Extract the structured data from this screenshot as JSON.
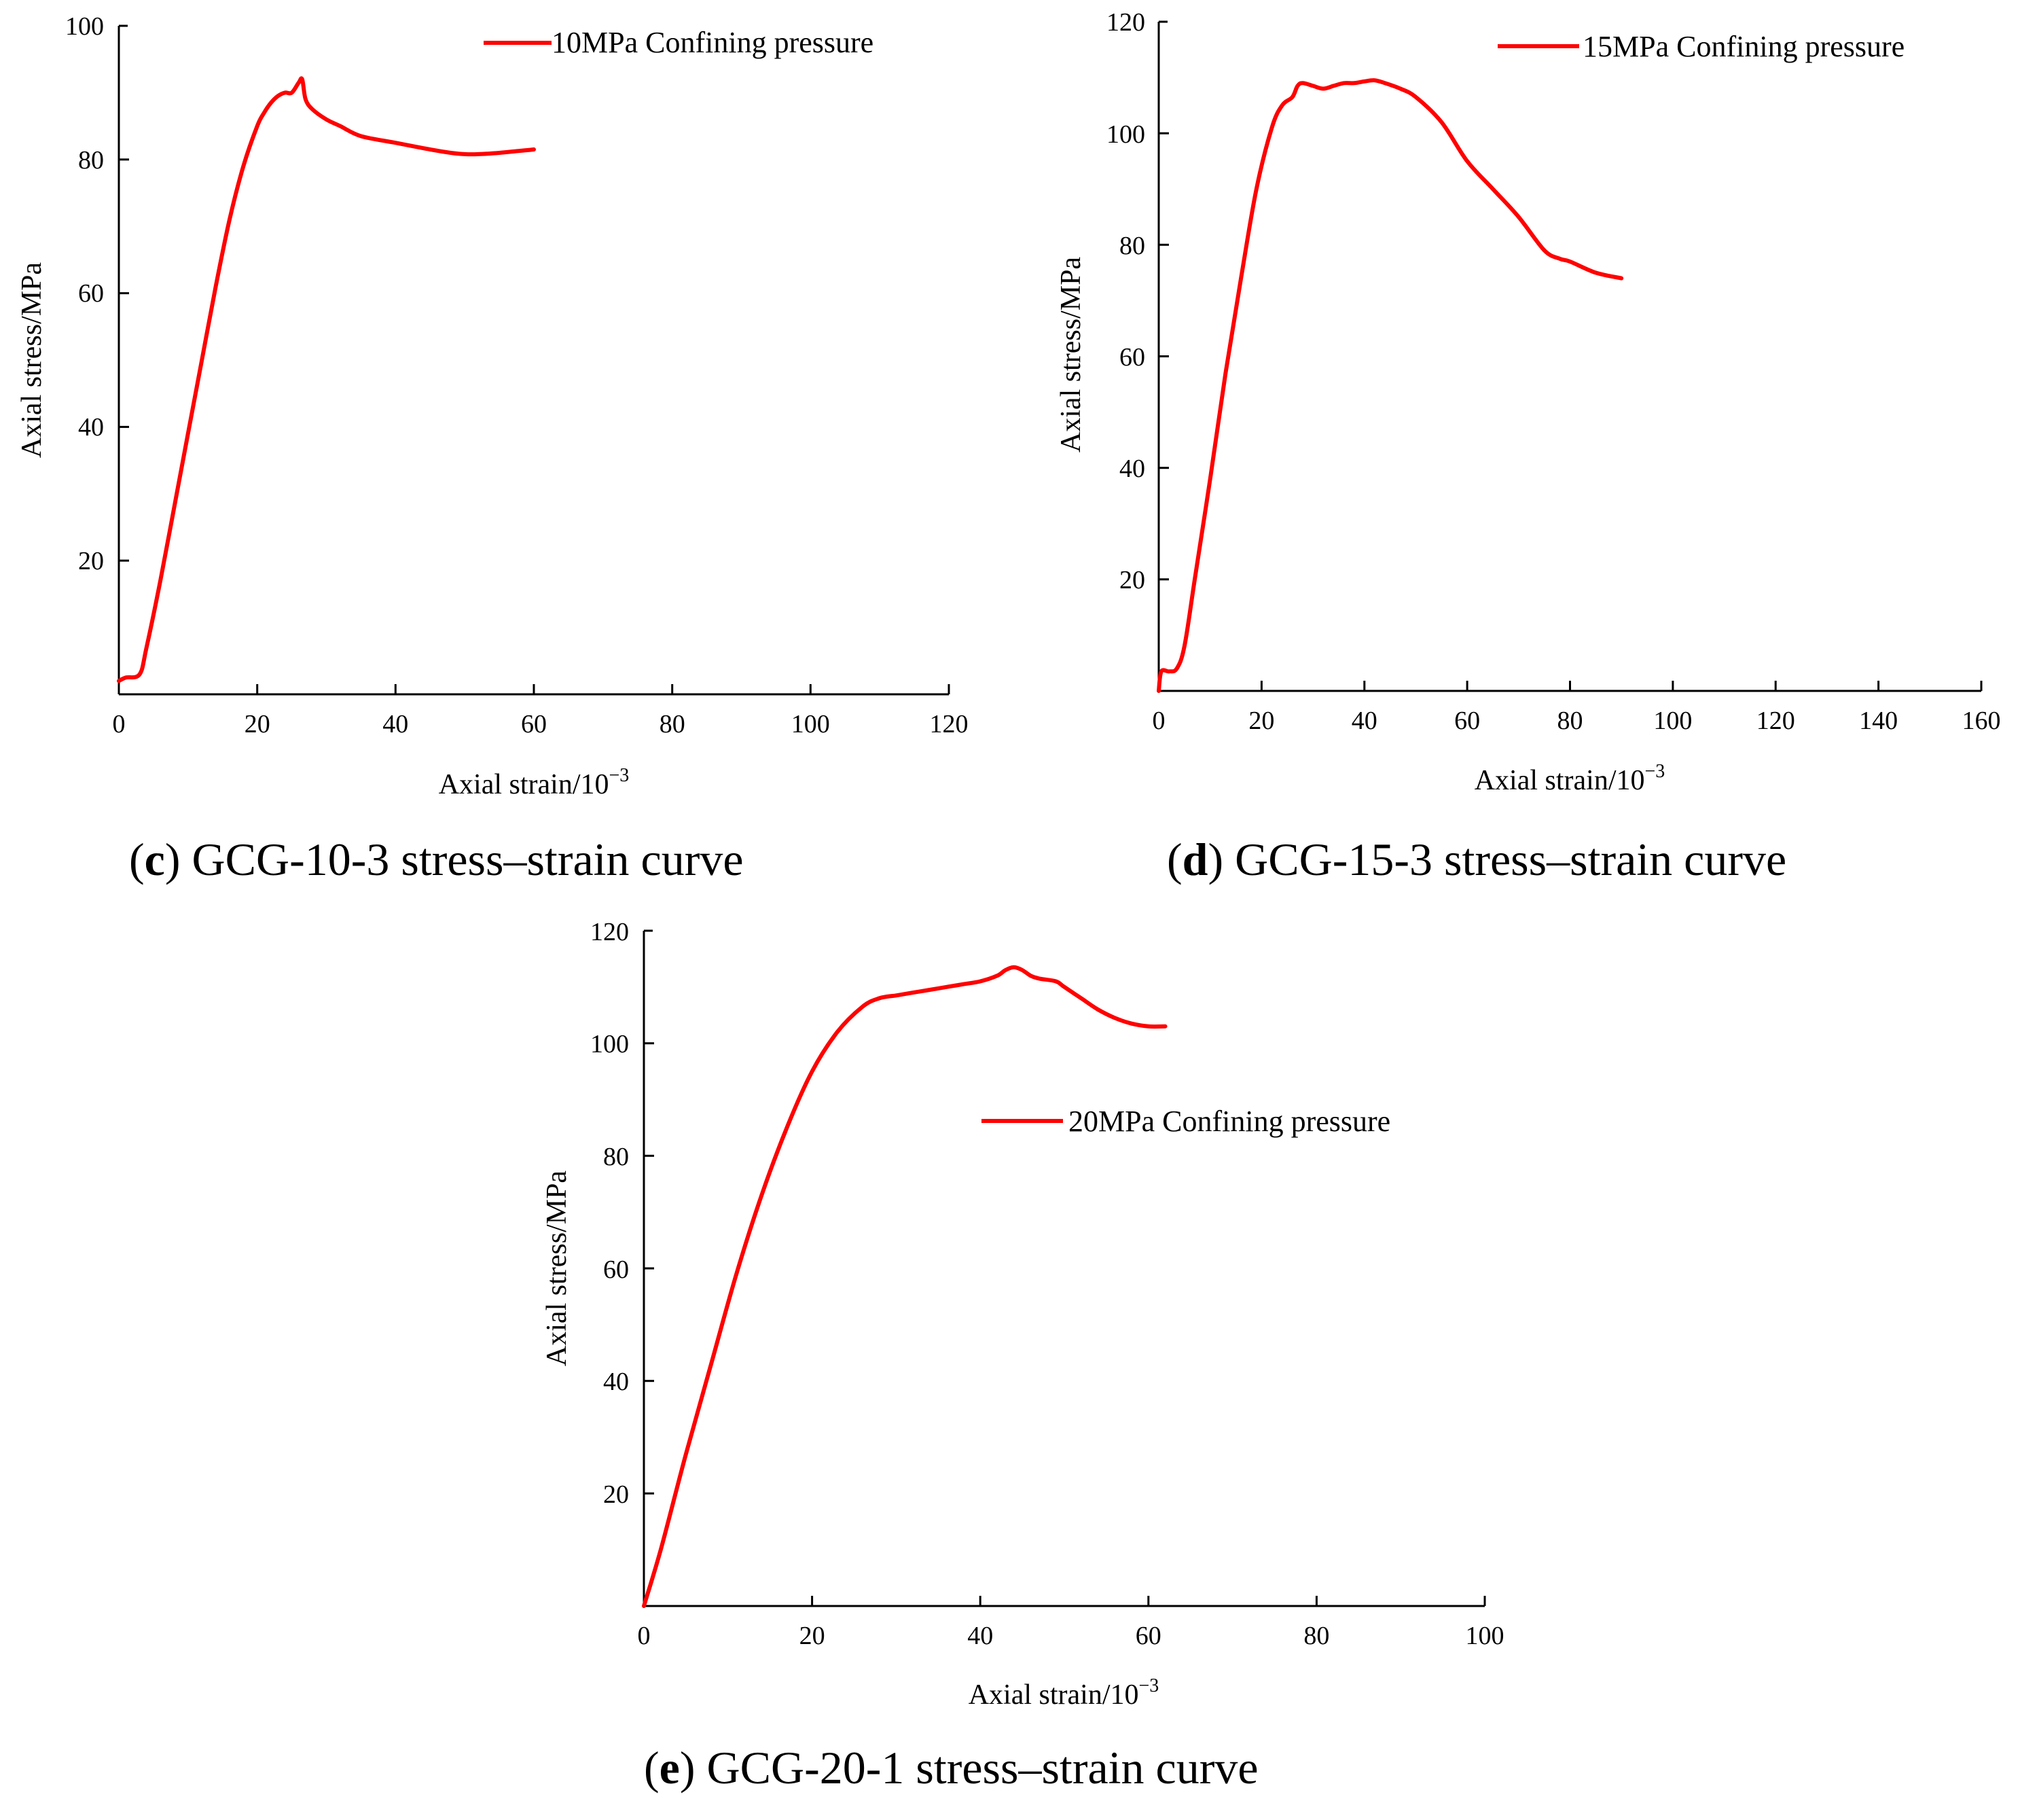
{
  "chart_data": [
    {
      "id": "c",
      "type": "line",
      "caption_letter": "c",
      "caption_text": "GCG-10-3 stress–strain curve",
      "xlabel": "Axial strain/10",
      "xlabel_exp": "−3",
      "ylabel": "Axial stress/MPa",
      "xlim": [
        0,
        120
      ],
      "ylim": [
        0,
        100
      ],
      "xticks": [
        "0",
        "20",
        "40",
        "60",
        "80",
        "100",
        "120"
      ],
      "yticks": [
        "20",
        "40",
        "60",
        "80",
        "100"
      ],
      "legend_position": "top-right",
      "line_color": "#ff0000",
      "series": [
        {
          "name": "10MPa Confining pressure",
          "x": [
            0,
            1,
            3,
            4,
            6,
            8,
            10,
            12,
            14,
            16,
            18,
            20,
            21,
            22,
            23,
            24,
            25,
            26,
            26.5,
            27,
            28,
            30,
            32,
            35,
            40,
            45,
            48,
            50,
            52,
            55,
            58,
            60
          ],
          "y": [
            2,
            2.5,
            3,
            7,
            17,
            28,
            39,
            50,
            61,
            71,
            79,
            85,
            87,
            88.5,
            89.5,
            90,
            90,
            91.5,
            92,
            89,
            87.5,
            86,
            85,
            83.5,
            82.5,
            81.5,
            81,
            80.8,
            80.8,
            81,
            81.3,
            81.5
          ]
        }
      ]
    },
    {
      "id": "d",
      "type": "line",
      "caption_letter": "d",
      "caption_text": "GCG-15-3 stress–strain curve",
      "xlabel": "Axial strain/10",
      "xlabel_exp": "−3",
      "ylabel": "Axial stress/MPa",
      "xlim": [
        0,
        160
      ],
      "ylim": [
        0,
        120
      ],
      "xticks": [
        "0",
        "20",
        "40",
        "60",
        "80",
        "100",
        "120",
        "140",
        "160"
      ],
      "yticks": [
        "20",
        "40",
        "60",
        "80",
        "100",
        "120"
      ],
      "legend_position": "top-right",
      "line_color": "#ff0000",
      "series": [
        {
          "name": "15MPa Confining pressure",
          "x": [
            0,
            0.5,
            2,
            3.5,
            5,
            7,
            10,
            13,
            16,
            19,
            22,
            24,
            26,
            27,
            28,
            30,
            32,
            34,
            36,
            38,
            40,
            42,
            44,
            47,
            50,
            55,
            60,
            65,
            70,
            75,
            78,
            80,
            85,
            90
          ],
          "y": [
            0,
            3.5,
            3.5,
            4,
            8,
            20,
            38,
            57,
            74,
            90,
            101,
            105,
            106.5,
            108.5,
            109,
            108.5,
            108,
            108.5,
            109,
            109,
            109.3,
            109.5,
            109,
            108,
            106.5,
            102,
            95,
            90,
            85,
            79,
            77.5,
            77,
            75,
            74
          ]
        }
      ]
    },
    {
      "id": "e",
      "type": "line",
      "caption_letter": "e",
      "caption_text": "GCG-20-1 stress–strain curve",
      "xlabel": "Axial strain/10",
      "xlabel_exp": "−3",
      "ylabel": "Axial stress/MPa",
      "xlim": [
        0,
        100
      ],
      "ylim": [
        0,
        120
      ],
      "xticks": [
        "0",
        "20",
        "40",
        "60",
        "80",
        "100"
      ],
      "yticks": [
        "20",
        "40",
        "60",
        "80",
        "100",
        "120"
      ],
      "legend_position": "center",
      "line_color": "#ff0000",
      "series": [
        {
          "name": "20MPa Confining pressure",
          "x": [
            0,
            2,
            5,
            8,
            11,
            14,
            17,
            20,
            23,
            26,
            28,
            30,
            32,
            34,
            36,
            38,
            40,
            42,
            43,
            44,
            45,
            46,
            47,
            49,
            50,
            52,
            54,
            56,
            58,
            60,
            62
          ],
          "y": [
            0,
            10,
            27,
            43,
            59,
            73,
            85,
            95,
            102,
            106.5,
            108,
            108.5,
            109,
            109.5,
            110,
            110.5,
            111,
            112,
            113,
            113.5,
            113,
            112,
            111.5,
            111,
            110,
            108,
            106,
            104.5,
            103.5,
            103,
            103
          ]
        }
      ]
    }
  ]
}
